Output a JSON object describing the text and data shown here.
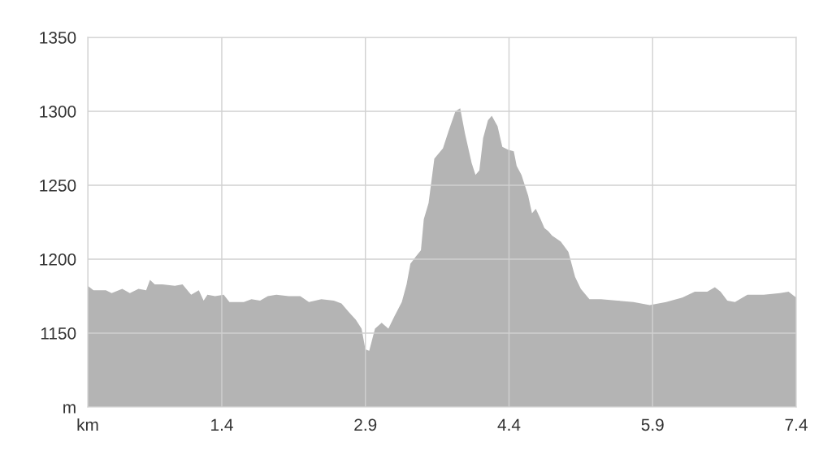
{
  "chart_data": {
    "type": "area",
    "xlim": [
      0,
      7.4
    ],
    "ylim": [
      1100,
      1350
    ],
    "xticks": [
      {
        "value": 0,
        "label": "km"
      },
      1.4,
      2.9,
      4.4,
      5.9,
      7.4
    ],
    "yticks": [
      {
        "value": 1100,
        "label": "m"
      },
      1150,
      1200,
      1250,
      1300,
      1350
    ],
    "grid": true,
    "legend": false,
    "series": [
      {
        "color": "#b4b4b4",
        "x": [
          0,
          0.06,
          0.19,
          0.25,
          0.36,
          0.44,
          0.53,
          0.61,
          0.65,
          0.7,
          0.78,
          0.91,
          0.99,
          1.08,
          1.16,
          1.21,
          1.25,
          1.33,
          1.42,
          1.48,
          1.63,
          1.71,
          1.8,
          1.88,
          1.97,
          2.1,
          2.22,
          2.31,
          2.44,
          2.57,
          2.65,
          2.73,
          2.8,
          2.86,
          2.9,
          2.94,
          3.0,
          3.07,
          3.14,
          3.2,
          3.28,
          3.33,
          3.37,
          3.43,
          3.48,
          3.51,
          3.56,
          3.62,
          3.71,
          3.77,
          3.84,
          3.89,
          3.94,
          4.01,
          4.05,
          4.09,
          4.13,
          4.18,
          4.22,
          4.28,
          4.33,
          4.39,
          4.45,
          4.48,
          4.53,
          4.6,
          4.64,
          4.68,
          4.73,
          4.77,
          4.81,
          4.85,
          4.94,
          5.02,
          5.09,
          5.15,
          5.24,
          5.36,
          5.53,
          5.7,
          5.87,
          6.04,
          6.21,
          6.34,
          6.47,
          6.55,
          6.61,
          6.68,
          6.76,
          6.89,
          7.06,
          7.23,
          7.32,
          7.36,
          7.4
        ],
        "values": [
          1182,
          1179,
          1179,
          1177,
          1180,
          1177,
          1180,
          1179,
          1186,
          1183,
          1183,
          1182,
          1183,
          1176,
          1179,
          1172,
          1176,
          1175,
          1176,
          1171,
          1171,
          1173,
          1172,
          1175,
          1176,
          1175,
          1175,
          1171,
          1173,
          1172,
          1170,
          1164,
          1159,
          1153,
          1139,
          1138,
          1153,
          1157,
          1153,
          1161,
          1171,
          1183,
          1197,
          1202,
          1206,
          1227,
          1238,
          1268,
          1275,
          1287,
          1300,
          1302,
          1285,
          1265,
          1257,
          1260,
          1282,
          1294,
          1297,
          1290,
          1276,
          1274,
          1273,
          1263,
          1257,
          1243,
          1231,
          1234,
          1227,
          1221,
          1219,
          1216,
          1212,
          1205,
          1188,
          1180,
          1173,
          1173,
          1172,
          1171,
          1169,
          1171,
          1174,
          1178,
          1178,
          1181,
          1178,
          1172,
          1171,
          1176,
          1176,
          1177,
          1178,
          1176,
          1174
        ]
      }
    ]
  }
}
